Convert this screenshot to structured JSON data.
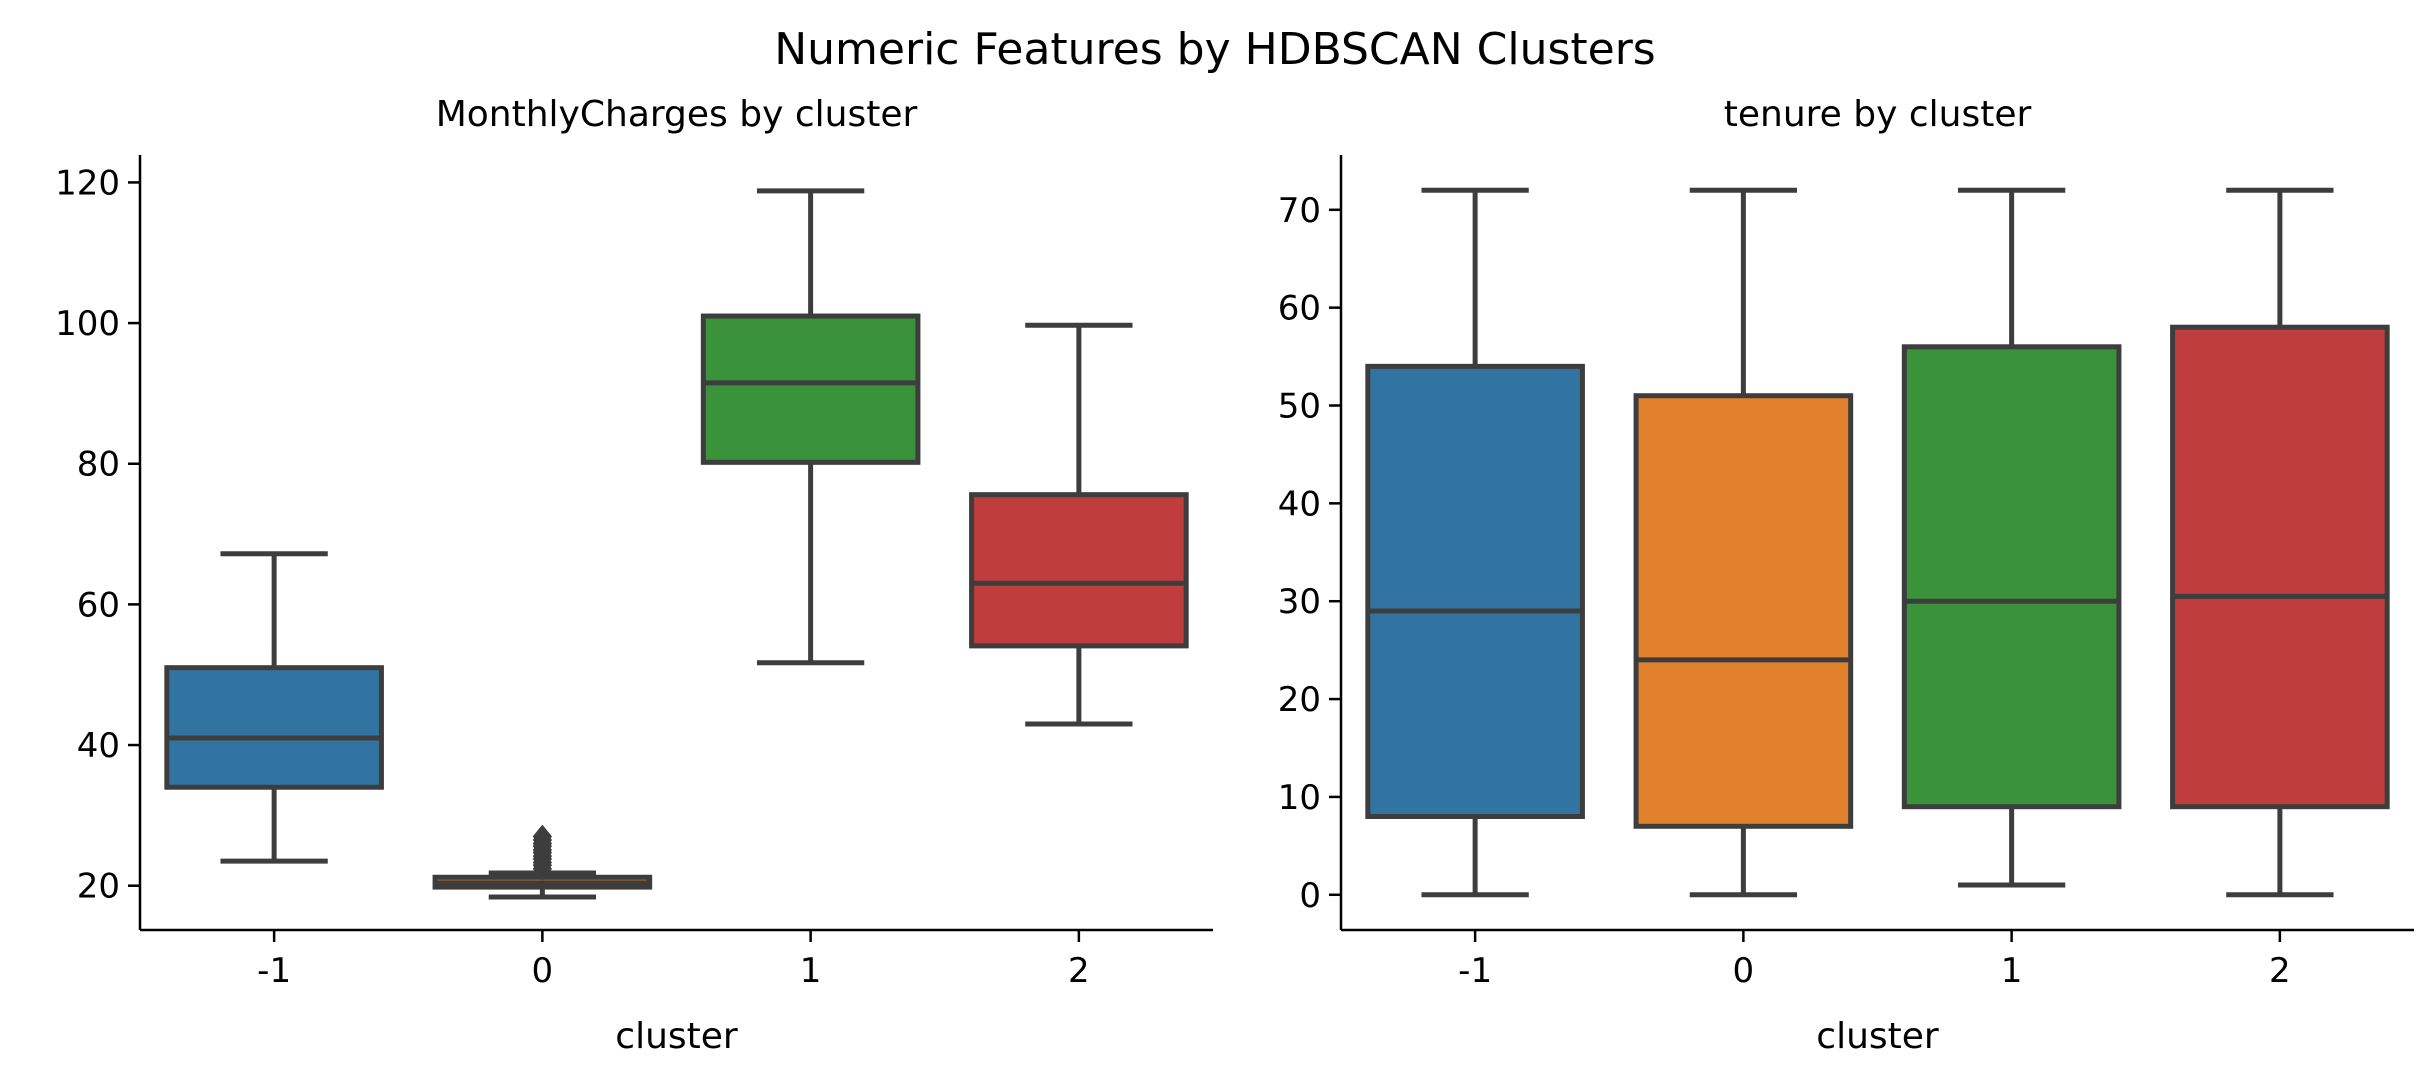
{
  "figure": {
    "title": "Numeric Features by HDBSCAN Clusters"
  },
  "chart_data": [
    {
      "type": "box",
      "title": "MonthlyCharges by cluster",
      "xlabel": "cluster",
      "ylabel": "",
      "categories": [
        "-1",
        "0",
        "1",
        "2"
      ],
      "ylim": [
        13.7,
        123.9
      ],
      "yticks": [
        20,
        40,
        60,
        80,
        100,
        120
      ],
      "colors": [
        "#3274a1",
        "#e1812c",
        "#3a923a",
        "#c03d3e"
      ],
      "boxes": [
        {
          "cluster": "-1",
          "whisker_low": 23.5,
          "q1": 34.0,
          "median": 41.0,
          "q3": 51.0,
          "whisker_high": 67.2,
          "outliers": []
        },
        {
          "cluster": "0",
          "whisker_low": 18.4,
          "q1": 19.8,
          "median": 20.4,
          "q3": 21.2,
          "whisker_high": 21.8,
          "outliers": [
            22.4,
            22.9,
            23.3,
            23.8,
            24.2,
            24.7,
            25.1,
            25.6,
            26.0,
            26.5,
            27.0
          ]
        },
        {
          "cluster": "1",
          "whisker_low": 51.7,
          "q1": 80.2,
          "median": 91.5,
          "q3": 101.0,
          "whisker_high": 118.8,
          "outliers": []
        },
        {
          "cluster": "2",
          "whisker_low": 43.0,
          "q1": 54.1,
          "median": 63.0,
          "q3": 75.6,
          "whisker_high": 99.7,
          "outliers": []
        }
      ]
    },
    {
      "type": "box",
      "title": "tenure by cluster",
      "xlabel": "cluster",
      "ylabel": "",
      "categories": [
        "-1",
        "0",
        "1",
        "2"
      ],
      "ylim": [
        -3.6,
        75.6
      ],
      "yticks": [
        0,
        10,
        20,
        30,
        40,
        50,
        60,
        70
      ],
      "colors": [
        "#3274a1",
        "#e1812c",
        "#3a923a",
        "#c03d3e"
      ],
      "boxes": [
        {
          "cluster": "-1",
          "whisker_low": 0,
          "q1": 8,
          "median": 29,
          "q3": 54,
          "whisker_high": 72,
          "outliers": []
        },
        {
          "cluster": "0",
          "whisker_low": 0,
          "q1": 7,
          "median": 24,
          "q3": 51,
          "whisker_high": 72,
          "outliers": []
        },
        {
          "cluster": "1",
          "whisker_low": 1,
          "q1": 9,
          "median": 30,
          "q3": 56,
          "whisker_high": 72,
          "outliers": []
        },
        {
          "cluster": "2",
          "whisker_low": 0,
          "q1": 9,
          "median": 30.5,
          "q3": 58,
          "whisker_high": 72,
          "outliers": []
        }
      ]
    }
  ]
}
